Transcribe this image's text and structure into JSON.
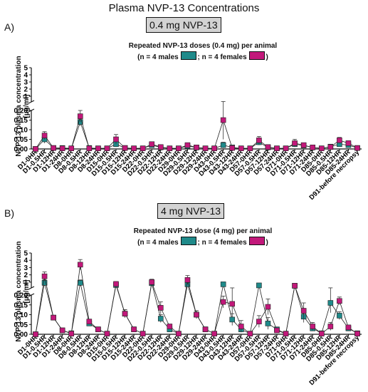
{
  "title": "Plasma NVP-13 Concentrations",
  "colors": {
    "males": "#1f8a8a",
    "females": "#c2187a",
    "line": "#222222"
  },
  "chart_data": [
    {
      "type": "line",
      "panel": "A)",
      "dose_label": "0.4 mg NVP-13",
      "legend_title": "Repeated NVP-13 doses (0.4 mg) per animal",
      "legend_males": "(n = 4 males",
      "legend_sep": "; n = 4 females",
      "legend_close": ")",
      "ylabel": "NVP-13 plasma concentration\n[µg/ml]",
      "y_axis_break": true,
      "y_lower": {
        "ylim": [
          0,
          0.2
        ],
        "ticks": [
          "0.00",
          "0.05",
          "0.10",
          "0.15",
          "0.20"
        ]
      },
      "y_upper": {
        "ylim": [
          0.2,
          5
        ],
        "ticks": [
          "1",
          "2",
          "3",
          "4",
          "5"
        ]
      },
      "categories": [
        "D1-0HR",
        "D1-0.5HR",
        "D1-12HR",
        "D1-24HR",
        "D8-0HR",
        "D8-0.5HR",
        "D8-12HR",
        "D8-24HR",
        "D15-0HR",
        "D15-0.5HR",
        "D15-12HR",
        "D15-24HR",
        "D22-0HR",
        "D22-0.5HR",
        "D22-12HR",
        "D22-24HR",
        "D29-0HR",
        "D29-0.5HR",
        "D29-12HR",
        "D29-24HR",
        "D43-0HR",
        "D43-0.5HR",
        "D43-12HR",
        "D43-24HR",
        "D57-0HR",
        "D57-0.5HR",
        "D57-12HR",
        "D57-24HR",
        "D71-0HR",
        "D71-0.5HR",
        "D71-12HR",
        "D71-24HR",
        "D85-0HR",
        "D85-0.5HR",
        "D85-12HR",
        "D85-24HR",
        "D91-before necropsy"
      ],
      "series": [
        {
          "name": "males",
          "values": [
            0,
            0.05,
            0.005,
            0.005,
            0.003,
            0.14,
            0.005,
            0.003,
            0.003,
            0.025,
            0.005,
            0.003,
            0.003,
            0.02,
            0.008,
            0.003,
            0.003,
            0.015,
            0.008,
            0.003,
            0.003,
            0.02,
            0.008,
            0.003,
            0.003,
            0.035,
            0.008,
            0.003,
            0.003,
            0.025,
            0.018,
            0.008,
            0.003,
            0.012,
            0.025,
            0.02,
            0.005
          ],
          "errors": [
            0,
            0.02,
            0.003,
            0.002,
            0.002,
            0.02,
            0.003,
            0.002,
            0.002,
            0.015,
            0.003,
            0.002,
            0.002,
            0.008,
            0.004,
            0.002,
            0.002,
            0.006,
            0.004,
            0.002,
            0.002,
            0.015,
            0.004,
            0.002,
            0.002,
            0.015,
            0.004,
            0.002,
            0.002,
            0.012,
            0.008,
            0.004,
            0.002,
            0.006,
            0.012,
            0.01,
            0.003
          ]
        },
        {
          "name": "females",
          "values": [
            0,
            0.07,
            0.005,
            0.003,
            0.003,
            0.17,
            0.003,
            0.003,
            0.003,
            0.05,
            0.005,
            0.003,
            0.003,
            0.025,
            0.01,
            0.003,
            0.003,
            0.02,
            0.008,
            0.003,
            0.003,
            0.15,
            0.005,
            0.003,
            0.003,
            0.045,
            0.01,
            0.003,
            0.003,
            0.03,
            0.02,
            0.008,
            0.003,
            0.01,
            0.045,
            0.03,
            0.005
          ],
          "errors": [
            0,
            0.02,
            0.003,
            0.002,
            0.002,
            0.03,
            0.002,
            0.002,
            0.002,
            0.025,
            0.003,
            0.002,
            0.002,
            0.008,
            0.004,
            0.002,
            0.002,
            0.006,
            0.004,
            0.002,
            0.002,
            0.1,
            0.003,
            0.002,
            0.002,
            0.02,
            0.005,
            0.002,
            0.002,
            0.02,
            0.01,
            0.004,
            0.002,
            0.005,
            0.015,
            0.012,
            0.003
          ]
        }
      ]
    },
    {
      "type": "line",
      "panel": "B)",
      "dose_label": "4 mg NVP-13",
      "legend_title": "Repeated NVP-13 dose (4 mg) per animal",
      "legend_males": "(n = 4 males",
      "legend_sep": "; n = 4 females",
      "legend_close": ")",
      "ylabel": "NVP-13 plasma concentration\n[µg/ml]",
      "y_axis_break": true,
      "y_lower": {
        "ylim": [
          0,
          0.2
        ],
        "ticks": [
          "0.00",
          "0.05",
          "0.10",
          "0.15",
          "0.20"
        ]
      },
      "y_upper": {
        "ylim": [
          0.2,
          5
        ],
        "ticks": [
          "1",
          "2",
          "3",
          "4",
          "5"
        ]
      },
      "categories": [
        "D1-0HR",
        "D1-0.5HR",
        "D1-12HR",
        "D1-24HR",
        "D8-0HR",
        "D8-0.5HR",
        "D8-12HR",
        "D8-24HR",
        "D15-0HR",
        "D15-0.5HR",
        "D15-12HR",
        "D15-24HR",
        "D22-0HR",
        "D22-0.5HR",
        "D22-12HR",
        "D22-24HR",
        "D29-0HR",
        "D29-0.5HR",
        "D29-12HR",
        "D29-24HR",
        "D43-0HR",
        "D43-0.5HR",
        "D43-12HR",
        "D43-24HR",
        "D57-0HR",
        "D57-0.5HR",
        "D57-12HR",
        "D57-24HR",
        "D71-0HR",
        "D71-0.5HR",
        "D71-12HR",
        "D71-24HR",
        "D85-0HR",
        "D85-0.5HR",
        "D85-12HR",
        "D85-24HR",
        "D91-before necropsy"
      ],
      "series": [
        {
          "name": "males",
          "values": [
            0,
            0.9,
            0.085,
            0.02,
            0.005,
            0.9,
            0.055,
            0.025,
            0.003,
            0.6,
            0.105,
            0.025,
            0.003,
            0.85,
            0.08,
            0.025,
            0.003,
            0.7,
            0.1,
            0.025,
            0.003,
            0.7,
            0.075,
            0.025,
            0.003,
            0.55,
            0.055,
            0.025,
            0.003,
            0.5,
            0.09,
            0.03,
            0.005,
            0.16,
            0.095,
            0.03,
            0.005
          ],
          "errors": [
            0,
            0.4,
            0.01,
            0.005,
            0.002,
            0.4,
            0.01,
            0.005,
            0.002,
            0.2,
            0.02,
            0.005,
            0.002,
            0.3,
            0.02,
            0.008,
            0.002,
            0.25,
            0.02,
            0.008,
            0.002,
            0.2,
            0.03,
            0.01,
            0.002,
            0.15,
            0.03,
            0.01,
            0.002,
            0.15,
            0.03,
            0.01,
            0.002,
            0.05,
            0.02,
            0.01,
            0.002
          ]
        },
        {
          "name": "females",
          "values": [
            0,
            1.8,
            0.085,
            0.02,
            0.003,
            3.4,
            0.065,
            0.025,
            0.003,
            0.75,
            0.105,
            0.025,
            0.003,
            1.0,
            0.135,
            0.04,
            0.003,
            1.3,
            0.1,
            0.025,
            0.003,
            0.165,
            0.155,
            0.04,
            0.003,
            0.065,
            0.14,
            0.02,
            0.003,
            0.5,
            0.12,
            0.04,
            0.003,
            0.04,
            0.17,
            0.035,
            0.003
          ],
          "errors": [
            0,
            0.6,
            0.01,
            0.005,
            0.002,
            0.7,
            0.01,
            0.005,
            0.002,
            0.3,
            0.02,
            0.005,
            0.002,
            0.4,
            0.03,
            0.01,
            0.002,
            0.6,
            0.02,
            0.008,
            0.002,
            0.03,
            0.05,
            0.03,
            0.002,
            0.03,
            0.04,
            0.01,
            0.002,
            0.1,
            0.04,
            0.02,
            0.002,
            0.02,
            0.02,
            0.01,
            0.002
          ]
        }
      ]
    }
  ]
}
